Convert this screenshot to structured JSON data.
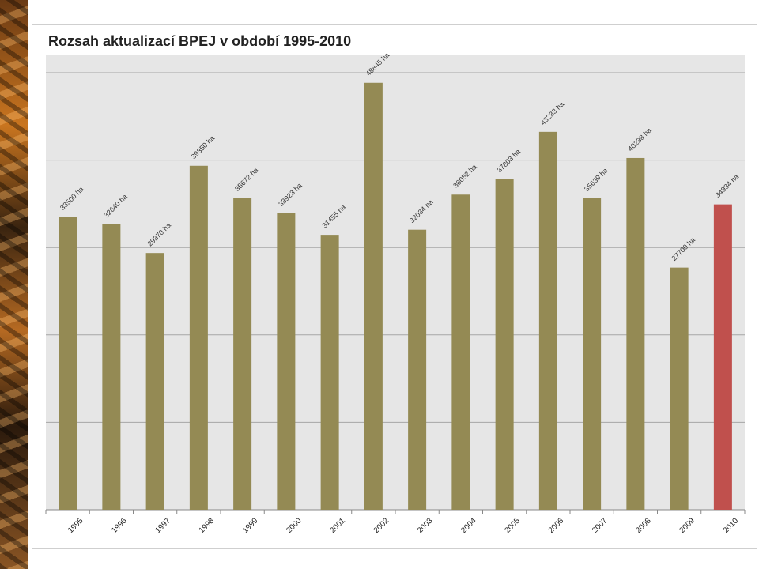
{
  "colors": {
    "bar": "#948a54",
    "highlight_bar": "#c0504d",
    "plot_background": "#e6e6e6",
    "gridline": "#a6a6a6"
  },
  "chart_data": {
    "type": "bar",
    "title": "Rozsah aktualizací BPEJ v období 1995-2010",
    "xlabel": "",
    "ylabel": "",
    "ylim": [
      0,
      50000
    ],
    "grid": true,
    "legend": "none",
    "categories": [
      "1995",
      "1996",
      "1997",
      "1998",
      "1999",
      "2000",
      "2001",
      "2002",
      "2003",
      "2004",
      "2005",
      "2006",
      "2007",
      "2008",
      "2009",
      "2010"
    ],
    "values": [
      33500,
      32640,
      29370,
      39350,
      35672,
      33923,
      31455,
      48845,
      32034,
      36052,
      37803,
      43233,
      35639,
      40238,
      27700,
      34934
    ],
    "data_labels": [
      "33500 ha",
      "32640 ha",
      "29370 ha",
      "39350 ha",
      "35672 ha",
      "33923 ha",
      "31455 ha",
      "48845 ha",
      "32034 ha",
      "36052 ha",
      "37803 ha",
      "43233 ha",
      "35639 ha",
      "40238 ha",
      "27700 ha",
      "34934 ha"
    ],
    "highlight_index": 15
  }
}
